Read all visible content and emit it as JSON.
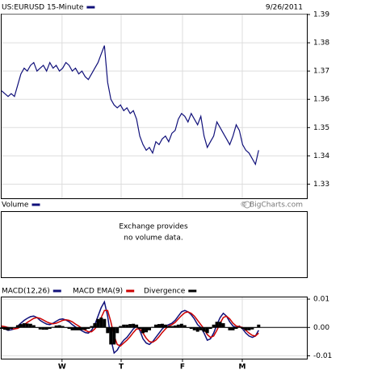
{
  "chart_data": [
    {
      "type": "line",
      "date": "9/26/2011",
      "credit": "© BigCharts.com",
      "series": [
        {
          "name": "US:EURUSD 15-Minute",
          "color": "#10107a",
          "values": [
            1.363,
            1.362,
            1.361,
            1.362,
            1.361,
            1.365,
            1.369,
            1.371,
            1.37,
            1.372,
            1.373,
            1.37,
            1.371,
            1.372,
            1.37,
            1.373,
            1.371,
            1.372,
            1.37,
            1.371,
            1.373,
            1.372,
            1.37,
            1.371,
            1.369,
            1.37,
            1.368,
            1.367,
            1.369,
            1.371,
            1.373,
            1.376,
            1.379,
            1.366,
            1.36,
            1.358,
            1.357,
            1.358,
            1.356,
            1.357,
            1.355,
            1.356,
            1.353,
            1.347,
            1.344,
            1.342,
            1.343,
            1.341,
            1.345,
            1.344,
            1.346,
            1.347,
            1.345,
            1.348,
            1.349,
            1.353,
            1.355,
            1.354,
            1.352,
            1.355,
            1.353,
            1.351,
            1.354,
            1.347,
            1.343,
            1.345,
            1.347,
            1.352,
            1.35,
            1.348,
            1.346,
            1.344,
            1.347,
            1.351,
            1.349,
            1.344,
            1.342,
            1.341,
            1.339,
            1.337,
            1.342
          ]
        }
      ],
      "xlim": [
        0,
        95
      ],
      "ylim": [
        1.325,
        1.39
      ],
      "yticks": [
        1.33,
        1.34,
        1.35,
        1.36,
        1.37,
        1.38,
        1.39
      ],
      "grid": true
    },
    {
      "type": "bar",
      "series": [
        {
          "name": "Volume",
          "color": "#10107a"
        }
      ],
      "annotations": [
        "Exchange provides",
        "no volume data."
      ]
    },
    {
      "type": "line",
      "series": [
        {
          "name": "MACD(12,26)",
          "color": "#10107a",
          "values": [
            0,
            -0.0005,
            -0.001,
            -0.0008,
            -0.0005,
            0.0005,
            0.0015,
            0.0025,
            0.0032,
            0.0038,
            0.004,
            0.0035,
            0.0025,
            0.0018,
            0.0012,
            0.001,
            0.0015,
            0.0022,
            0.0028,
            0.003,
            0.0026,
            0.002,
            0.001,
            0.0002,
            -0.0005,
            -0.0012,
            -0.0018,
            -0.002,
            -0.001,
            0.001,
            0.004,
            0.007,
            0.009,
            0.004,
            -0.004,
            -0.009,
            -0.008,
            -0.006,
            -0.0045,
            -0.0035,
            -0.002,
            -0.0005,
            0.0005,
            -0.001,
            -0.004,
            -0.0055,
            -0.006,
            -0.005,
            -0.0035,
            -0.002,
            -0.0005,
            0.0005,
            0.001,
            0.0015,
            0.0025,
            0.004,
            0.0055,
            0.006,
            0.0055,
            0.0045,
            0.003,
            0.001,
            0,
            -0.002,
            -0.0045,
            -0.004,
            -0.002,
            0.001,
            0.0035,
            0.005,
            0.004,
            0.002,
            0.0005,
            0,
            0.0005,
            -0.0005,
            -0.002,
            -0.003,
            -0.0035,
            -0.003,
            -0.001
          ]
        },
        {
          "name": "MACD EMA(9)",
          "color": "#cc0000",
          "values": [
            0.0005,
            0.0003,
            0,
            -0.0003,
            -0.0005,
            -0.0003,
            0.0003,
            0.001,
            0.0018,
            0.0025,
            0.0032,
            0.0035,
            0.0032,
            0.0026,
            0.002,
            0.0015,
            0.0013,
            0.0015,
            0.002,
            0.0025,
            0.0027,
            0.0025,
            0.002,
            0.0012,
            0.0005,
            -0.0003,
            -0.001,
            -0.0015,
            -0.0015,
            -0.0005,
            0.001,
            0.0035,
            0.006,
            0.006,
            0.002,
            -0.003,
            -0.006,
            -0.0065,
            -0.0055,
            -0.0045,
            -0.0032,
            -0.0018,
            -0.0005,
            -0.0005,
            -0.002,
            -0.0038,
            -0.005,
            -0.0052,
            -0.0045,
            -0.0032,
            -0.0018,
            -0.0005,
            0.0005,
            0.001,
            0.0018,
            0.003,
            0.0042,
            0.0052,
            0.0055,
            0.005,
            0.004,
            0.0025,
            0.001,
            -0.0005,
            -0.0025,
            -0.0035,
            -0.003,
            -0.001,
            0.0015,
            0.0035,
            0.004,
            0.003,
            0.0015,
            0.0005,
            0.0003,
            0,
            -0.001,
            -0.002,
            -0.0028,
            -0.003,
            -0.002
          ]
        },
        {
          "name": "Divergence",
          "color": "#000000",
          "type": "bar",
          "values": [
            -0.0005,
            -0.0008,
            -0.001,
            -0.0005,
            0,
            0.0008,
            0.0012,
            0.0015,
            0.0014,
            0.0013,
            0.0008,
            0,
            -0.0007,
            -0.0008,
            -0.0008,
            -0.0005,
            0.0002,
            0.0007,
            0.0008,
            0.0005,
            -0.0001,
            -0.0005,
            -0.001,
            -0.001,
            -0.001,
            -0.0009,
            -0.0008,
            -0.0005,
            0.0005,
            0.0015,
            0.003,
            0.0035,
            0.003,
            -0.002,
            -0.006,
            -0.006,
            -0.002,
            0.0005,
            0.001,
            0.001,
            0.0012,
            0.0013,
            0.001,
            -0.0005,
            -0.002,
            -0.0017,
            -0.001,
            0.0002,
            0.001,
            0.0012,
            0.0013,
            0.001,
            0.0005,
            0.0005,
            0.0007,
            0.001,
            0.0013,
            0.0008,
            0,
            -0.0005,
            -0.001,
            -0.0015,
            -0.001,
            -0.0015,
            -0.002,
            -0.0005,
            0.001,
            0.002,
            0.002,
            0.0015,
            0,
            -0.001,
            -0.001,
            -0.0005,
            0.0002,
            -0.0005,
            -0.001,
            -0.001,
            -0.0007,
            0,
            0.001
          ]
        }
      ],
      "xlim": [
        0,
        95
      ],
      "ylim": [
        -0.011,
        0.0106
      ],
      "yticks": [
        0.01,
        {
          "value": 0,
          "label": "0.00"
        },
        -0.01
      ],
      "xticks": [
        {
          "value": 18.8,
          "label": "W"
        },
        {
          "value": 37.2,
          "label": "T"
        },
        {
          "value": 56.3,
          "label": "F"
        },
        {
          "value": 74.9,
          "label": "M"
        }
      ],
      "grid": true
    }
  ]
}
